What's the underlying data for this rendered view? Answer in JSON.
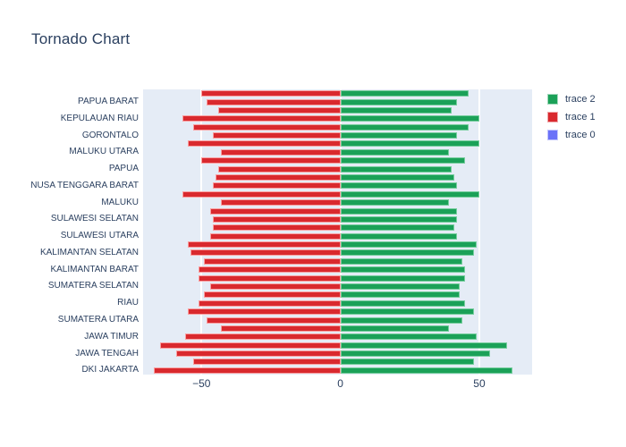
{
  "title": "Tornado Chart",
  "colors": {
    "positive_green": "#1ba158",
    "negative_red": "#d9292e",
    "trace0_blue": "#6b72f8",
    "plot_background": "#e5ecf6",
    "text": "#2a3f5f",
    "gridline": "#ffffff"
  },
  "legend": {
    "position": "top-right",
    "items": [
      {
        "label": "trace 2",
        "color": "#1ba158"
      },
      {
        "label": "trace 1",
        "color": "#d9292e"
      },
      {
        "label": "trace 0",
        "color": "#6b72f8"
      }
    ]
  },
  "chart_data": {
    "type": "bar",
    "orientation": "horizontal",
    "subtype": "tornado",
    "title": "Tornado Chart",
    "xlabel": "",
    "ylabel": "",
    "grid": true,
    "xlim": [
      -71,
      69
    ],
    "x_ticks": [
      {
        "value": -50,
        "label": "−50"
      },
      {
        "value": 0,
        "label": "0"
      },
      {
        "value": 50,
        "label": "50"
      }
    ],
    "note": "34 category rows; y-axis tick labels are shown only for every other category. Each row has a red bar (trace 1, negative side) and a green bar (trace 2, positive side). Values below are magnitudes read from bar lengths.",
    "rows": [
      {
        "label": "",
        "negative": 50,
        "positive": 46
      },
      {
        "label": "PAPUA BARAT",
        "negative": 48,
        "positive": 42
      },
      {
        "label": "",
        "negative": 44,
        "positive": 40
      },
      {
        "label": "KEPULAUAN RIAU",
        "negative": 57,
        "positive": 50
      },
      {
        "label": "",
        "negative": 53,
        "positive": 46
      },
      {
        "label": "GORONTALO",
        "negative": 46,
        "positive": 42
      },
      {
        "label": "",
        "negative": 55,
        "positive": 50
      },
      {
        "label": "MALUKU UTARA",
        "negative": 43,
        "positive": 39
      },
      {
        "label": "",
        "negative": 50,
        "positive": 45
      },
      {
        "label": "PAPUA",
        "negative": 44,
        "positive": 40
      },
      {
        "label": "",
        "negative": 45,
        "positive": 41
      },
      {
        "label": "NUSA TENGGARA BARAT",
        "negative": 46,
        "positive": 42
      },
      {
        "label": "",
        "negative": 57,
        "positive": 50
      },
      {
        "label": "MALUKU",
        "negative": 43,
        "positive": 39
      },
      {
        "label": "",
        "negative": 47,
        "positive": 42
      },
      {
        "label": "SULAWESI SELATAN",
        "negative": 46,
        "positive": 42
      },
      {
        "label": "",
        "negative": 46,
        "positive": 41
      },
      {
        "label": "SULAWESI UTARA",
        "negative": 47,
        "positive": 42
      },
      {
        "label": "",
        "negative": 55,
        "positive": 49
      },
      {
        "label": "KALIMANTAN SELATAN",
        "negative": 54,
        "positive": 48
      },
      {
        "label": "",
        "negative": 49,
        "positive": 44
      },
      {
        "label": "KALIMANTAN BARAT",
        "negative": 51,
        "positive": 45
      },
      {
        "label": "",
        "negative": 51,
        "positive": 45
      },
      {
        "label": "SUMATERA SELATAN",
        "negative": 47,
        "positive": 43
      },
      {
        "label": "",
        "negative": 49,
        "positive": 43
      },
      {
        "label": "RIAU",
        "negative": 51,
        "positive": 45
      },
      {
        "label": "",
        "negative": 55,
        "positive": 48
      },
      {
        "label": "SUMATERA UTARA",
        "negative": 48,
        "positive": 44
      },
      {
        "label": "",
        "negative": 43,
        "positive": 39
      },
      {
        "label": "JAWA TIMUR",
        "negative": 56,
        "positive": 49
      },
      {
        "label": "",
        "negative": 65,
        "positive": 60
      },
      {
        "label": "JAWA TENGAH",
        "negative": 59,
        "positive": 54
      },
      {
        "label": "",
        "negative": 53,
        "positive": 48
      },
      {
        "label": "DKI JAKARTA",
        "negative": 67,
        "positive": 62
      }
    ]
  }
}
